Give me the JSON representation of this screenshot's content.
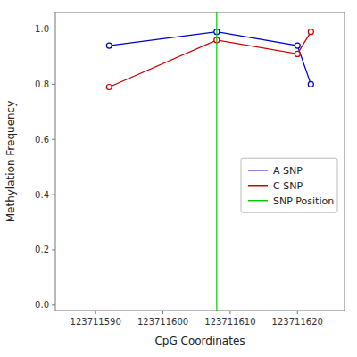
{
  "chart_data": {
    "type": "line",
    "xlabel": "CpG Coordinates",
    "ylabel": "Methylation Frequency",
    "x": [
      123711592,
      123711608,
      123711620,
      123711622
    ],
    "series": [
      {
        "name": "A SNP",
        "color": "#0000CC",
        "marker": "circle",
        "line_style": "solid",
        "values": [
          0.94,
          0.99,
          0.94,
          0.8
        ]
      },
      {
        "name": "C SNP",
        "color": "#CC0000",
        "marker": "circle",
        "line_style": "solid",
        "values": [
          0.79,
          0.96,
          0.91,
          0.99
        ]
      },
      {
        "name": "SNP Position",
        "type": "vline",
        "color": "#00CC00",
        "x": [
          123711608
        ]
      }
    ],
    "xlim": [
      123711584,
      123711627
    ],
    "ylim": [
      -0.02,
      1.06
    ],
    "xticks": [
      123711590,
      123711600,
      123711610,
      123711620
    ],
    "yticks": [
      {
        "value": 0.0,
        "label": "0.0"
      },
      0.2,
      0.4,
      0.6,
      0.8,
      {
        "value": 1.0,
        "label": "1.0"
      }
    ],
    "grid": false,
    "legend": "right"
  }
}
